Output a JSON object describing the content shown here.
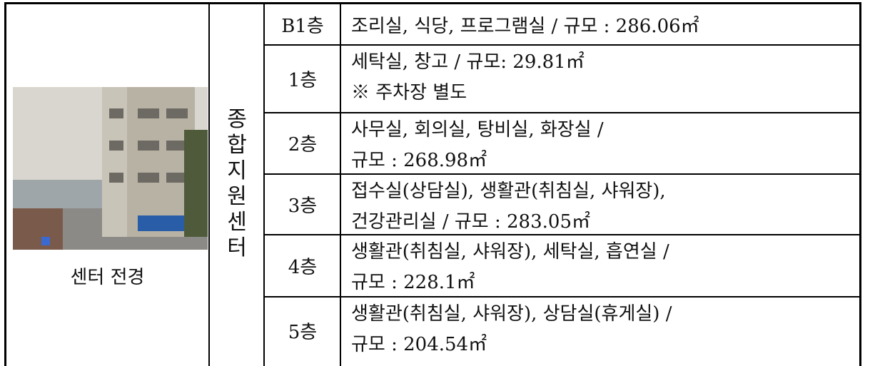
{
  "photo_caption": "센터 전경",
  "section_label": "종합지원센터",
  "table": {
    "rows": [
      {
        "floor": "B1층",
        "lines": [
          "조리실, 식당, 프로그램실 / 규모 : 286.06㎡"
        ]
      },
      {
        "floor": "1층",
        "lines": [
          "세탁실, 창고 / 규모: 29.81㎡",
          "※ 주차장 별도"
        ]
      },
      {
        "floor": "2층",
        "lines": [
          "사무실, 회의실, 탕비실, 화장실 /",
          "규모 : 268.98㎡"
        ]
      },
      {
        "floor": "3층",
        "lines": [
          "접수실(상담실), 생활관(취침실, 샤워장),",
          "건강관리실 / 규모 : 283.05㎡"
        ]
      },
      {
        "floor": "4층",
        "lines": [
          "생활관(취침실, 샤워장), 세탁실, 흡연실 /",
          "규모 : 228.1㎡"
        ]
      },
      {
        "floor": "5층",
        "lines": [
          "생활관(취침실, 샤워장), 상담실(휴게실) /",
          "규모 : 204.54㎡"
        ]
      }
    ]
  }
}
